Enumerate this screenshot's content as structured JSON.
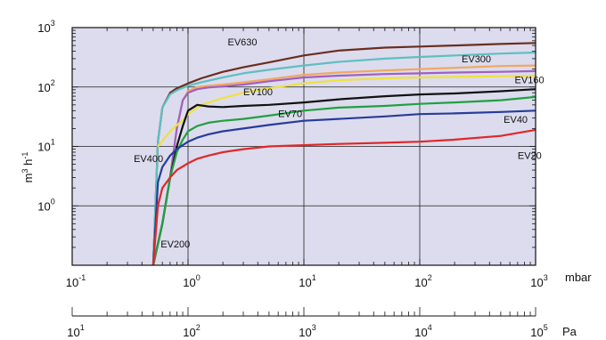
{
  "chart_data": {
    "type": "line",
    "title": "",
    "xscale": "log",
    "yscale": "log",
    "xlim": [
      0.1,
      1000
    ],
    "ylim": [
      0.1,
      1000
    ],
    "grid": "major",
    "background": "#dcdcee",
    "ylabel": {
      "base": "m",
      "sup1": "3",
      "mid": " h",
      "sup2": "-1"
    },
    "x_unit": "mbar",
    "x2_unit": "Pa",
    "x_ticks": [
      {
        "value": 0.1,
        "base": "10",
        "exp": "-1"
      },
      {
        "value": 1,
        "base": "10",
        "exp": "0"
      },
      {
        "value": 10,
        "base": "10",
        "exp": "1"
      },
      {
        "value": 100,
        "base": "10",
        "exp": "2"
      },
      {
        "value": 1000,
        "base": "10",
        "exp": "3"
      }
    ],
    "x2_ticks": [
      {
        "value": 10,
        "base": "10",
        "exp": "1"
      },
      {
        "value": 100,
        "base": "10",
        "exp": "2"
      },
      {
        "value": 1000,
        "base": "10",
        "exp": "3"
      },
      {
        "value": 10000,
        "base": "10",
        "exp": "4"
      },
      {
        "value": 100000,
        "base": "10",
        "exp": "5"
      }
    ],
    "y_ticks": [
      {
        "value": 1,
        "base": "10",
        "exp": "0"
      },
      {
        "value": 10,
        "base": "10",
        "exp": "1"
      },
      {
        "value": 100,
        "base": "10",
        "exp": "2"
      },
      {
        "value": 1000,
        "base": "10",
        "exp": "3"
      }
    ],
    "series": [
      {
        "name": "EV630",
        "color": "#6b2e1e",
        "x": [
          0.5,
          0.55,
          0.6,
          0.7,
          0.8,
          1,
          1.3,
          2,
          3,
          5,
          10,
          20,
          50,
          100,
          200,
          500,
          1000
        ],
        "y": [
          0.1,
          12,
          45,
          80,
          95,
          115,
          140,
          180,
          215,
          260,
          340,
          410,
          460,
          480,
          500,
          530,
          550
        ]
      },
      {
        "name": "EV300",
        "color": "#5fbfbf",
        "x": [
          0.5,
          0.55,
          0.6,
          0.7,
          0.8,
          1,
          1.3,
          2,
          3,
          5,
          10,
          20,
          50,
          100,
          200,
          500,
          1000
        ],
        "y": [
          0.1,
          12,
          45,
          75,
          88,
          105,
          120,
          145,
          170,
          195,
          230,
          265,
          300,
          320,
          340,
          365,
          380
        ]
      },
      {
        "name": "EV160",
        "color": "#f0a860",
        "x": [
          0.5,
          0.6,
          0.7,
          0.8,
          0.9,
          1,
          1.2,
          1.5,
          2,
          3,
          5,
          10,
          20,
          50,
          100,
          200,
          500,
          1000
        ],
        "y": [
          0.1,
          0.5,
          3,
          20,
          60,
          85,
          100,
          105,
          110,
          120,
          135,
          160,
          175,
          190,
          200,
          210,
          225,
          230
        ]
      },
      {
        "name": "",
        "color": "#a060c0",
        "x": [
          0.5,
          0.6,
          0.7,
          0.8,
          0.9,
          1,
          1.2,
          1.5,
          2,
          3,
          5,
          10,
          20,
          50,
          100,
          200,
          500,
          1000
        ],
        "y": [
          0.1,
          0.5,
          3,
          20,
          60,
          80,
          92,
          98,
          102,
          110,
          125,
          145,
          155,
          165,
          170,
          175,
          180,
          185
        ]
      },
      {
        "name": "",
        "color": "#f0e040",
        "x": [
          0.55,
          0.7,
          0.9,
          1,
          1.3,
          2,
          3,
          5,
          10,
          20,
          50,
          100,
          200,
          500,
          1000
        ],
        "y": [
          10,
          18,
          28,
          35,
          50,
          65,
          80,
          95,
          115,
          130,
          140,
          145,
          148,
          152,
          155
        ]
      },
      {
        "name": "EV100",
        "color": "#111111",
        "x": [
          0.5,
          0.6,
          0.7,
          0.8,
          0.9,
          1,
          1.2,
          1.5,
          2,
          3,
          5,
          10,
          20,
          50,
          100,
          200,
          500,
          1000
        ],
        "y": [
          0.1,
          0.5,
          3,
          10,
          22,
          40,
          50,
          47,
          46,
          48,
          50,
          55,
          62,
          70,
          75,
          78,
          85,
          92
        ]
      },
      {
        "name": "EV70",
        "color": "#22a040",
        "x": [
          0.5,
          0.6,
          0.7,
          0.8,
          0.9,
          1,
          1.2,
          1.5,
          2,
          3,
          5,
          10,
          20,
          50,
          100,
          200,
          500,
          1000
        ],
        "y": [
          0.1,
          0.5,
          3,
          8,
          13,
          18,
          22,
          25,
          27,
          29,
          33,
          40,
          45,
          48,
          52,
          55,
          60,
          68
        ]
      },
      {
        "name": "EV40",
        "color": "#283c9a",
        "x": [
          0.5,
          0.55,
          0.6,
          0.7,
          0.8,
          1,
          1.2,
          1.5,
          2,
          3,
          5,
          10,
          20,
          50,
          100,
          200,
          500,
          1000
        ],
        "y": [
          0.1,
          2.5,
          4.5,
          7,
          9,
          12,
          14,
          16,
          18,
          20,
          23,
          27,
          29,
          32,
          35,
          36,
          38,
          40
        ]
      },
      {
        "name": "EV20",
        "color": "#e02828",
        "x": [
          0.5,
          0.55,
          0.6,
          0.7,
          0.8,
          1,
          1.2,
          1.5,
          2,
          3,
          5,
          10,
          20,
          50,
          100,
          200,
          500,
          1000
        ],
        "y": [
          0.1,
          1,
          2,
          3,
          4,
          5.2,
          6.2,
          7,
          8,
          9,
          10,
          10.5,
          11,
          11.5,
          12,
          13,
          15,
          19
        ]
      }
    ],
    "annotations": [
      {
        "text": "EV630",
        "x": 2.2,
        "y": 500
      },
      {
        "text": "EV300",
        "x": 230,
        "y": 260
      },
      {
        "text": "EV160",
        "x": 660,
        "y": 115
      },
      {
        "text": "EV100",
        "x": 3.0,
        "y": 73
      },
      {
        "text": "EV70",
        "x": 6.0,
        "y": 31
      },
      {
        "text": "EV40",
        "x": 530,
        "y": 25
      },
      {
        "text": "EV20",
        "x": 700,
        "y": 6.2
      },
      {
        "text": "EV400",
        "x": 0.34,
        "y": 5.5
      },
      {
        "text": "EV200",
        "x": 0.58,
        "y": 0.2
      }
    ]
  }
}
